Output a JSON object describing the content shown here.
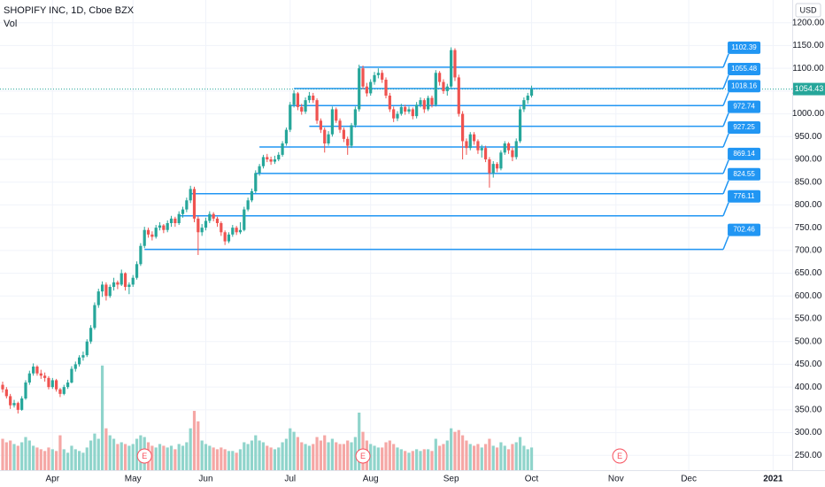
{
  "chart_data": {
    "type": "candlestick",
    "title": "SHOPIFY INC, 1D, Cboe BZX",
    "volume_label": "Vol",
    "currency": "USD",
    "up_color": "#26a69a",
    "down_color": "#ef5350",
    "up_volume_color": "#8fd4cb",
    "down_volume_color": "#f5a7a5",
    "level_color": "#2196f3",
    "grid": true,
    "ylim": [
      200,
      1250
    ],
    "yticks": [
      {
        "value": 250,
        "label": "250.00"
      },
      {
        "value": 300,
        "label": "300.00"
      },
      {
        "value": 350,
        "label": "350.00"
      },
      {
        "value": 400,
        "label": "400.00"
      },
      {
        "value": 450,
        "label": "450.00"
      },
      {
        "value": 500,
        "label": "500.00"
      },
      {
        "value": 550,
        "label": "550.00"
      },
      {
        "value": 600,
        "label": "600.00"
      },
      {
        "value": 650,
        "label": "650.00"
      },
      {
        "value": 700,
        "label": "700.00"
      },
      {
        "value": 750,
        "label": "750.00"
      },
      {
        "value": 800,
        "label": "800.00"
      },
      {
        "value": 850,
        "label": "850.00"
      },
      {
        "value": 900,
        "label": "900.00"
      },
      {
        "value": 950,
        "label": "950.00"
      },
      {
        "value": 1000,
        "label": "1000.00"
      },
      {
        "value": 1050,
        "label": "1050.00"
      },
      {
        "value": 1100,
        "label": "1100.00"
      },
      {
        "value": 1150,
        "label": "1150.00"
      },
      {
        "value": 1200,
        "label": "1200.00"
      }
    ],
    "xlim": [
      0,
      206
    ],
    "xticks": [
      {
        "value": 13,
        "label": "Apr"
      },
      {
        "value": 34,
        "label": "May"
      },
      {
        "value": 53,
        "label": "Jun"
      },
      {
        "value": 75,
        "label": "Jul"
      },
      {
        "value": 96,
        "label": "Aug"
      },
      {
        "value": 117,
        "label": "Sep"
      },
      {
        "value": 138,
        "label": "Oct"
      },
      {
        "value": 160,
        "label": "Nov"
      },
      {
        "value": 179,
        "label": "Dec"
      },
      {
        "value": 201,
        "label": "2021"
      }
    ],
    "volume_ylim": [
      0,
      6.6
    ],
    "candles": [
      [
        405,
        412,
        388,
        395,
        1.8
      ],
      [
        395,
        400,
        375,
        380,
        1.6
      ],
      [
        380,
        385,
        352,
        360,
        1.7
      ],
      [
        360,
        372,
        355,
        365,
        1.5
      ],
      [
        365,
        368,
        342,
        350,
        1.4
      ],
      [
        350,
        380,
        348,
        375,
        1.6
      ],
      [
        375,
        415,
        372,
        410,
        1.9
      ],
      [
        410,
        436,
        405,
        430,
        1.7
      ],
      [
        430,
        452,
        425,
        445,
        1.4
      ],
      [
        445,
        448,
        425,
        430,
        1.3
      ],
      [
        430,
        438,
        418,
        425,
        1.2
      ],
      [
        425,
        432,
        412,
        420,
        1.1
      ],
      [
        420,
        424,
        395,
        400,
        1.3
      ],
      [
        400,
        420,
        396,
        415,
        1.2
      ],
      [
        415,
        418,
        390,
        395,
        1.1
      ],
      [
        395,
        398,
        378,
        385,
        2.0
      ],
      [
        385,
        405,
        382,
        400,
        1.2
      ],
      [
        400,
        416,
        396,
        410,
        1.0
      ],
      [
        410,
        446,
        408,
        440,
        1.4
      ],
      [
        440,
        456,
        434,
        450,
        1.2
      ],
      [
        450,
        470,
        445,
        465,
        1.1
      ],
      [
        465,
        478,
        458,
        470,
        1.0
      ],
      [
        470,
        505,
        466,
        500,
        1.3
      ],
      [
        500,
        536,
        495,
        530,
        1.7
      ],
      [
        530,
        586,
        526,
        580,
        2.1
      ],
      [
        580,
        616,
        574,
        610,
        1.8
      ],
      [
        610,
        632,
        598,
        625,
        6.0
      ],
      [
        625,
        630,
        590,
        600,
        2.4
      ],
      [
        600,
        625,
        596,
        620,
        2.0
      ],
      [
        620,
        640,
        612,
        630,
        1.8
      ],
      [
        630,
        634,
        615,
        625,
        1.5
      ],
      [
        625,
        658,
        622,
        650,
        1.6
      ],
      [
        650,
        652,
        612,
        620,
        1.5
      ],
      [
        620,
        630,
        604,
        625,
        1.4
      ],
      [
        625,
        646,
        620,
        640,
        1.5
      ],
      [
        640,
        676,
        636,
        670,
        1.8
      ],
      [
        670,
        716,
        666,
        710,
        2.0
      ],
      [
        710,
        752,
        705,
        745,
        1.9
      ],
      [
        745,
        750,
        728,
        735,
        1.6
      ],
      [
        735,
        742,
        722,
        730,
        1.4
      ],
      [
        730,
        756,
        726,
        750,
        1.3
      ],
      [
        750,
        762,
        744,
        755,
        1.5
      ],
      [
        755,
        758,
        738,
        745,
        1.4
      ],
      [
        745,
        766,
        740,
        760,
        1.3
      ],
      [
        760,
        776,
        752,
        770,
        1.4
      ],
      [
        770,
        774,
        752,
        760,
        1.2
      ],
      [
        760,
        786,
        756,
        780,
        1.5
      ],
      [
        780,
        796,
        772,
        790,
        1.4
      ],
      [
        790,
        816,
        784,
        810,
        1.6
      ],
      [
        810,
        842,
        804,
        835,
        2.4
      ],
      [
        835,
        840,
        762,
        770,
        3.4
      ],
      [
        770,
        775,
        690,
        740,
        2.8
      ],
      [
        740,
        758,
        732,
        750,
        1.7
      ],
      [
        750,
        772,
        744,
        765,
        1.5
      ],
      [
        765,
        786,
        760,
        780,
        1.4
      ],
      [
        780,
        784,
        764,
        770,
        1.3
      ],
      [
        770,
        774,
        752,
        760,
        1.2
      ],
      [
        760,
        764,
        732,
        740,
        1.3
      ],
      [
        740,
        744,
        712,
        720,
        1.2
      ],
      [
        720,
        740,
        716,
        735,
        1.1
      ],
      [
        735,
        756,
        730,
        750,
        1.1
      ],
      [
        750,
        754,
        734,
        740,
        1.0
      ],
      [
        740,
        762,
        736,
        745,
        1.2
      ],
      [
        745,
        796,
        742,
        790,
        1.6
      ],
      [
        790,
        816,
        786,
        810,
        1.5
      ],
      [
        810,
        836,
        806,
        830,
        1.7
      ],
      [
        830,
        876,
        826,
        870,
        2.0
      ],
      [
        870,
        890,
        864,
        885,
        1.7
      ],
      [
        885,
        910,
        880,
        905,
        1.6
      ],
      [
        905,
        912,
        894,
        900,
        1.4
      ],
      [
        900,
        906,
        888,
        895,
        1.3
      ],
      [
        895,
        908,
        890,
        900,
        1.2
      ],
      [
        900,
        916,
        896,
        910,
        1.3
      ],
      [
        910,
        940,
        906,
        935,
        1.6
      ],
      [
        935,
        970,
        930,
        965,
        1.8
      ],
      [
        965,
        1026,
        960,
        1020,
        2.4
      ],
      [
        1020,
        1052,
        1014,
        1045,
        2.2
      ],
      [
        1045,
        1048,
        1008,
        1015,
        1.9
      ],
      [
        1015,
        1022,
        998,
        1005,
        1.6
      ],
      [
        1005,
        1036,
        1000,
        1030,
        1.5
      ],
      [
        1030,
        1048,
        1024,
        1040,
        1.4
      ],
      [
        1040,
        1046,
        1024,
        1030,
        1.5
      ],
      [
        1030,
        1034,
        978,
        985,
        1.9
      ],
      [
        985,
        990,
        958,
        965,
        1.7
      ],
      [
        965,
        970,
        915,
        935,
        2.0
      ],
      [
        935,
        962,
        930,
        955,
        1.6
      ],
      [
        955,
        1016,
        950,
        1010,
        1.8
      ],
      [
        1010,
        1014,
        980,
        985,
        1.6
      ],
      [
        985,
        990,
        958,
        965,
        1.5
      ],
      [
        965,
        970,
        938,
        945,
        1.5
      ],
      [
        945,
        950,
        910,
        930,
        1.7
      ],
      [
        930,
        980,
        925,
        975,
        1.6
      ],
      [
        975,
        1016,
        970,
        1010,
        1.9
      ],
      [
        1010,
        1108,
        1005,
        1100,
        3.3
      ],
      [
        1100,
        1106,
        1054,
        1060,
        2.2
      ],
      [
        1060,
        1068,
        1038,
        1045,
        1.7
      ],
      [
        1045,
        1076,
        1040,
        1070,
        1.5
      ],
      [
        1070,
        1092,
        1064,
        1085,
        1.4
      ],
      [
        1085,
        1100,
        1078,
        1090,
        1.3
      ],
      [
        1090,
        1096,
        1068,
        1075,
        1.3
      ],
      [
        1075,
        1080,
        1034,
        1040,
        1.6
      ],
      [
        1040,
        1046,
        1004,
        1010,
        1.7
      ],
      [
        1010,
        1016,
        982,
        990,
        1.5
      ],
      [
        990,
        1006,
        984,
        1000,
        1.3
      ],
      [
        1000,
        1022,
        996,
        1015,
        1.2
      ],
      [
        1015,
        1020,
        998,
        1005,
        1.1
      ],
      [
        1005,
        1016,
        1000,
        1010,
        1.0
      ],
      [
        1010,
        1014,
        988,
        995,
        1.1
      ],
      [
        995,
        1026,
        990,
        1020,
        1.2
      ],
      [
        1020,
        1036,
        1014,
        1030,
        1.1
      ],
      [
        1030,
        1034,
        1002,
        1010,
        1.2
      ],
      [
        1010,
        1040,
        1006,
        1035,
        1.2
      ],
      [
        1035,
        1040,
        1014,
        1020,
        1.1
      ],
      [
        1020,
        1096,
        1016,
        1090,
        1.8
      ],
      [
        1090,
        1094,
        1062,
        1070,
        1.4
      ],
      [
        1070,
        1076,
        1044,
        1050,
        1.5
      ],
      [
        1050,
        1066,
        1040,
        1060,
        1.7
      ],
      [
        1060,
        1146,
        1056,
        1140,
        2.4
      ],
      [
        1140,
        1144,
        1072,
        1080,
        2.2
      ],
      [
        1080,
        1086,
        994,
        1000,
        2.3
      ],
      [
        1000,
        1006,
        900,
        940,
        2.0
      ],
      [
        940,
        946,
        910,
        925,
        1.7
      ],
      [
        925,
        960,
        920,
        955,
        1.5
      ],
      [
        955,
        960,
        932,
        940,
        1.4
      ],
      [
        940,
        944,
        912,
        920,
        1.5
      ],
      [
        920,
        932,
        904,
        925,
        1.3
      ],
      [
        925,
        930,
        894,
        900,
        1.5
      ],
      [
        900,
        905,
        838,
        870,
        1.8
      ],
      [
        870,
        896,
        860,
        890,
        1.4
      ],
      [
        890,
        894,
        872,
        880,
        1.3
      ],
      [
        880,
        920,
        876,
        915,
        1.6
      ],
      [
        915,
        940,
        910,
        935,
        1.4
      ],
      [
        935,
        938,
        912,
        920,
        1.2
      ],
      [
        920,
        926,
        896,
        905,
        1.5
      ],
      [
        905,
        946,
        900,
        940,
        1.6
      ],
      [
        940,
        1016,
        936,
        1010,
        1.9
      ],
      [
        1010,
        1036,
        1004,
        1030,
        1.4
      ],
      [
        1030,
        1046,
        1022,
        1040,
        1.2
      ],
      [
        1040,
        1062,
        1036,
        1054.43,
        1.3
      ]
    ],
    "levels": [
      {
        "price": 1102.39,
        "start": 93
      },
      {
        "price": 1055.48,
        "start": 76
      },
      {
        "price": 1018.16,
        "start": 75
      },
      {
        "price": 972.74,
        "start": 80
      },
      {
        "price": 927.25,
        "start": 67
      },
      {
        "price": 869.14,
        "start": 66
      },
      {
        "price": 824.55,
        "start": 49
      },
      {
        "price": 776.11,
        "start": 46
      },
      {
        "price": 702.46,
        "start": 37
      }
    ],
    "level_end": 188,
    "earnings": [
      {
        "x": 37,
        "label": "E"
      },
      {
        "x": 94,
        "label": "E"
      },
      {
        "x": 161,
        "label": "E"
      }
    ]
  }
}
